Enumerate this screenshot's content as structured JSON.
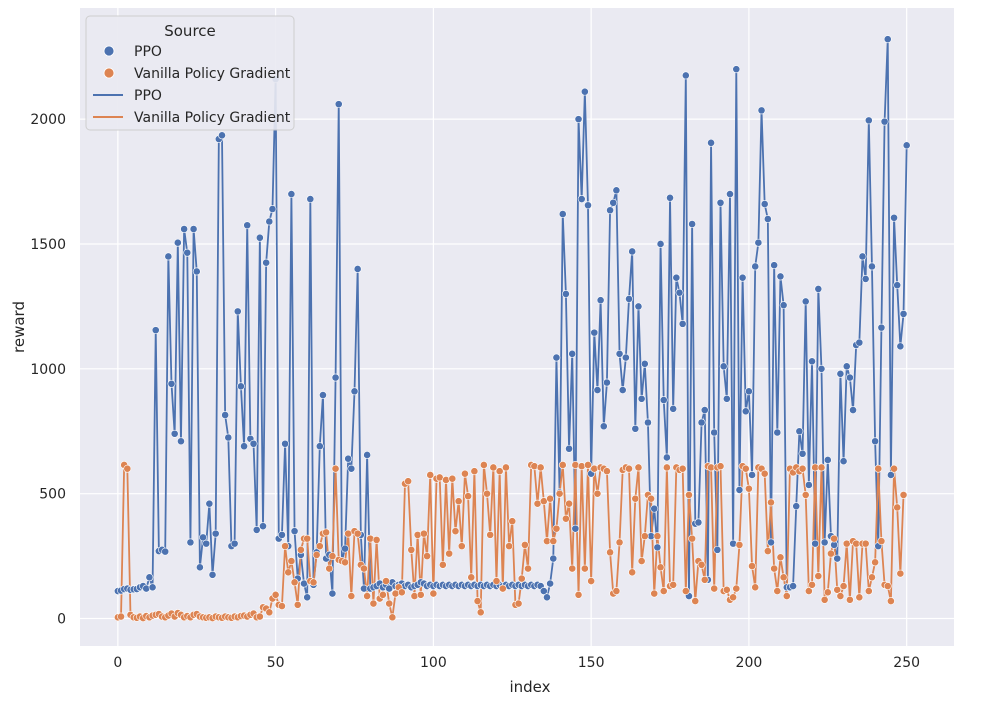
{
  "chart_data": {
    "type": "line",
    "xlabel": "index",
    "ylabel": "reward",
    "xlim": [
      -12,
      265
    ],
    "ylim": [
      -110,
      2445
    ],
    "xticks": [
      0,
      50,
      100,
      150,
      200,
      250
    ],
    "yticks": [
      0,
      500,
      1000,
      1500,
      2000
    ],
    "grid": true,
    "legend": {
      "title": "Source",
      "placement": "top-left",
      "entries": [
        {
          "kind": "marker",
          "label": "PPO",
          "color": "#4c72b0"
        },
        {
          "kind": "marker",
          "label": "Vanilla Policy Gradient",
          "color": "#dd8452"
        },
        {
          "kind": "line",
          "label": "PPO",
          "color": "#4c72b0"
        },
        {
          "kind": "line",
          "label": "Vanilla Policy Gradient",
          "color": "#dd8452"
        }
      ]
    },
    "series": [
      {
        "name": "PPO",
        "color": "#4c72b0",
        "values": [
          110,
          112,
          118,
          120,
          115,
          117,
          118,
          125,
          130,
          120,
          165,
          125,
          1155,
          270,
          275,
          268,
          1450,
          940,
          740,
          1505,
          710,
          1560,
          1465,
          305,
          1560,
          1390,
          205,
          325,
          300,
          460,
          175,
          340,
          1920,
          1935,
          815,
          725,
          290,
          300,
          1230,
          930,
          690,
          1575,
          720,
          700,
          355,
          1525,
          370,
          1425,
          1590,
          1640,
          2160,
          320,
          335,
          700,
          290,
          1700,
          350,
          160,
          255,
          140,
          85,
          1680,
          135,
          265,
          690,
          895,
          240,
          255,
          100,
          965,
          2060,
          230,
          280,
          640,
          600,
          910,
          1400,
          335,
          120,
          655,
          120,
          125,
          130,
          140,
          125,
          135,
          120,
          145,
          130,
          135,
          140,
          130,
          135,
          125,
          130,
          135,
          145,
          140,
          130,
          135,
          130,
          135,
          130,
          135,
          130,
          135,
          130,
          135,
          130,
          135,
          130,
          135,
          130,
          135,
          130,
          135,
          130,
          135,
          130,
          135,
          130,
          135,
          130,
          135,
          130,
          135,
          130,
          135,
          130,
          135,
          130,
          135,
          130,
          135,
          130,
          110,
          85,
          140,
          240,
          1045,
          505,
          1620,
          1300,
          680,
          1060,
          360,
          2000,
          1680,
          2110,
          1655,
          580,
          1145,
          915,
          1275,
          770,
          945,
          1635,
          1665,
          1715,
          1060,
          915,
          1045,
          1280,
          1470,
          760,
          1250,
          880,
          1020,
          785,
          330,
          440,
          285,
          1500,
          875,
          645,
          1685,
          840,
          1365,
          1305,
          1180,
          2175,
          90,
          1580,
          380,
          385,
          785,
          835,
          155,
          1905,
          745,
          275,
          1665,
          1010,
          880,
          1700,
          300,
          2200,
          515,
          1365,
          830,
          910,
          575,
          1410,
          1505,
          2035,
          1660,
          1600,
          305,
          1415,
          745,
          1370,
          1255,
          125,
          125,
          130,
          450,
          750,
          660,
          1270,
          535,
          1030,
          300,
          1320,
          1000,
          305,
          635,
          330,
          295,
          240,
          980,
          630,
          1010,
          965,
          835,
          1095,
          1105,
          1450,
          1360,
          1995,
          1410,
          710,
          290,
          1165,
          1990,
          2320,
          575,
          1605,
          1335,
          1090,
          1220,
          1895
        ]
      },
      {
        "name": "Vanilla Policy Gradient",
        "color": "#dd8452",
        "values": [
          5,
          8,
          615,
          600,
          15,
          5,
          3,
          8,
          2,
          10,
          5,
          12,
          15,
          18,
          8,
          5,
          12,
          20,
          8,
          22,
          15,
          5,
          10,
          5,
          15,
          18,
          8,
          5,
          3,
          5,
          2,
          8,
          5,
          3,
          8,
          5,
          3,
          8,
          5,
          10,
          12,
          8,
          15,
          20,
          5,
          8,
          45,
          40,
          25,
          80,
          95,
          55,
          50,
          290,
          185,
          230,
          145,
          55,
          275,
          320,
          320,
          150,
          145,
          255,
          290,
          340,
          345,
          200,
          250,
          600,
          235,
          230,
          225,
          340,
          90,
          350,
          340,
          215,
          200,
          90,
          320,
          60,
          315,
          80,
          95,
          150,
          60,
          5,
          100,
          125,
          105,
          540,
          550,
          275,
          90,
          335,
          95,
          340,
          250,
          575,
          100,
          560,
          565,
          215,
          555,
          260,
          560,
          350,
          470,
          290,
          580,
          490,
          165,
          590,
          70,
          25,
          615,
          500,
          335,
          605,
          150,
          590,
          120,
          605,
          290,
          390,
          55,
          60,
          160,
          295,
          200,
          615,
          610,
          460,
          605,
          470,
          310,
          480,
          310,
          360,
          500,
          615,
          400,
          460,
          200,
          615,
          95,
          610,
          200,
          615,
          150,
          600,
          500,
          605,
          600,
          590,
          265,
          100,
          110,
          305,
          595,
          605,
          600,
          185,
          480,
          605,
          230,
          330,
          495,
          480,
          100,
          330,
          205,
          110,
          605,
          130,
          135,
          605,
          595,
          600,
          110,
          495,
          320,
          70,
          230,
          215,
          155,
          610,
          605,
          120,
          605,
          610,
          110,
          115,
          75,
          85,
          120,
          295,
          610,
          600,
          520,
          210,
          125,
          605,
          600,
          580,
          270,
          465,
          200,
          110,
          245,
          165,
          90,
          600,
          585,
          605,
          590,
          600,
          495,
          110,
          135,
          605,
          170,
          605,
          75,
          105,
          260,
          320,
          115,
          90,
          130,
          300,
          75,
          310,
          300,
          85,
          300,
          300,
          110,
          165,
          225,
          600,
          310,
          135,
          130,
          70,
          600,
          445,
          180,
          495
        ]
      }
    ]
  }
}
